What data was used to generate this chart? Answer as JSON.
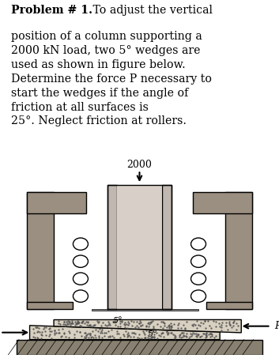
{
  "bg_color": "#ffffff",
  "fig_bg": "#b5aa9a",
  "text_bold": "Problem # 1.",
  "text_normal": " To adjust the vertical",
  "text_rest": "position of a column supporting a\n2000 kN load, two 5° wedges are\nused as shown in figure below.\nDetermine the force P necessary to\nstart the wedges if the angle of\nfriction at all surfaces is\n25°. Neglect friction at rollers.",
  "load_label": "2000",
  "wedge1_label": "5°",
  "wedge2_label": "5°",
  "p_label": "P",
  "wall_color": "#9a8f80",
  "col_color": "#c0b8b0",
  "col_inner_color": "#d8d0c8",
  "wedge_color": "#d8d0c0",
  "ground_color": "#888070",
  "roller_color": "#ffffff",
  "font_size_text": 10.2
}
